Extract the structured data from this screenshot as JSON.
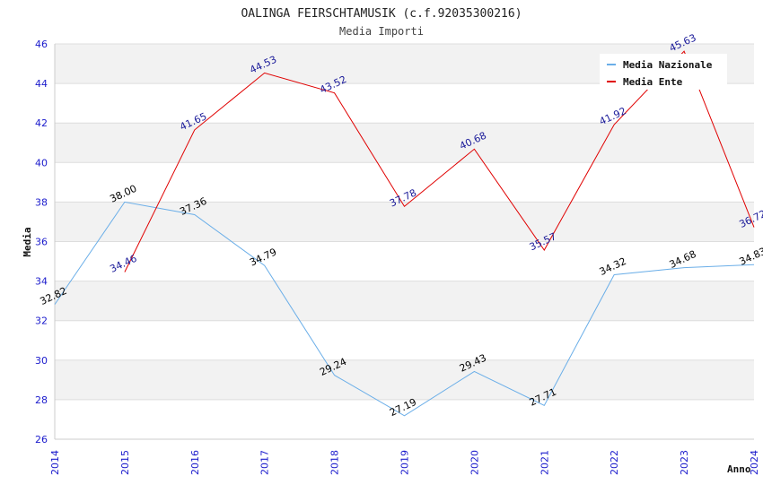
{
  "chart_data": {
    "type": "line",
    "title": "OALINGA FEIRSCHTAMUSIK (c.f.92035300216)",
    "subtitle": "Media Importi",
    "xlabel": "Anno",
    "ylabel": "Media",
    "x": [
      2014,
      2015,
      2016,
      2017,
      2018,
      2019,
      2020,
      2021,
      2022,
      2023,
      2024
    ],
    "ylim": [
      26,
      46
    ],
    "yticks": [
      26,
      28,
      30,
      32,
      34,
      36,
      38,
      40,
      42,
      44,
      46
    ],
    "grid": true,
    "legend_position": "top-right",
    "series": [
      {
        "name": "Media Nazionale",
        "color": "#6aaee8",
        "label_color": "#000000",
        "values": [
          32.82,
          38.0,
          37.36,
          34.79,
          29.24,
          27.19,
          29.43,
          27.71,
          34.32,
          34.68,
          34.83
        ],
        "labels": [
          "32.82",
          "38.00",
          "37.36",
          "34.79",
          "29.24",
          "27.19",
          "29.43",
          "27.71",
          "34.32",
          "34.68",
          "34.83"
        ]
      },
      {
        "name": "Media Ente",
        "color": "#e00000",
        "label_color": "#1a1a99",
        "values": [
          null,
          34.46,
          41.65,
          44.53,
          43.52,
          37.78,
          40.68,
          35.57,
          41.92,
          45.63,
          36.72
        ],
        "labels": [
          null,
          "34.46",
          "41.65",
          "44.53",
          "43.52",
          "37.78",
          "40.68",
          "35.57",
          "41.92",
          "45.63",
          "36.72"
        ]
      }
    ]
  }
}
